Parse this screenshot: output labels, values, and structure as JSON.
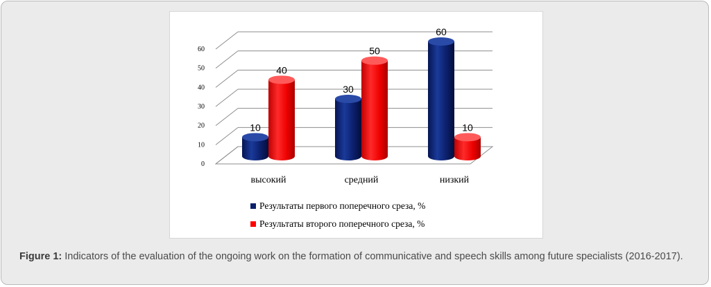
{
  "chart_data": {
    "type": "bar",
    "categories": [
      "высокий",
      "средний",
      "низкий"
    ],
    "series": [
      {
        "name": "Результаты первого поперечного среза, %",
        "values": [
          10,
          30,
          60
        ],
        "color": "#0b1f6b"
      },
      {
        "name": "Результаты второго поперечного среза, %",
        "values": [
          40,
          50,
          10
        ],
        "color": "#ff0000"
      }
    ],
    "ylim": [
      0,
      60
    ],
    "yticks": [
      0,
      10,
      20,
      30,
      40,
      50,
      60
    ],
    "grid": true,
    "legend_position": "bottom",
    "data_labels": true,
    "style": "3d-cylinder"
  },
  "figure": {
    "label": "Figure 1:",
    "text": " Indicators of the evaluation of the ongoing work on the formation of communicative and speech skills among future specialists (2016-2017)."
  }
}
